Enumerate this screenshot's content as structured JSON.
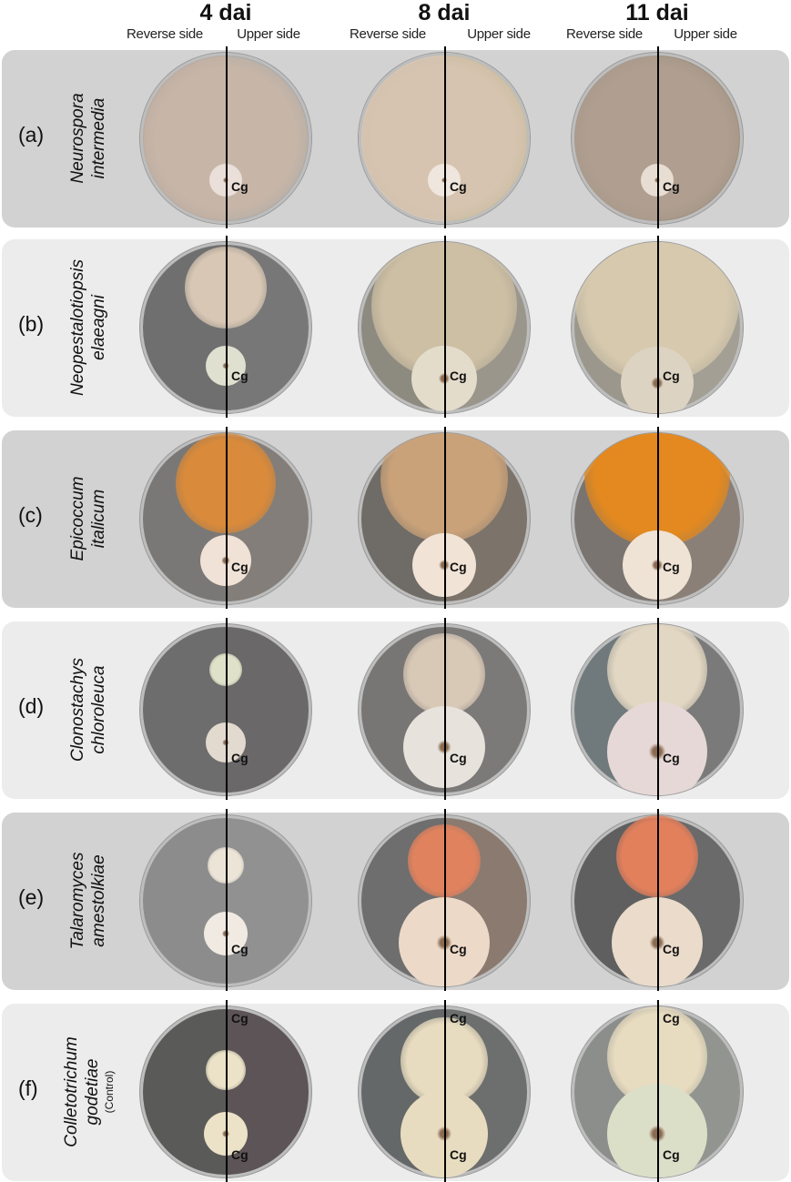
{
  "header": {
    "days": [
      "4 dai",
      "8 dai",
      "11 dai"
    ],
    "reverse_label": "Reverse side",
    "upper_label": "Upper side"
  },
  "rows": [
    {
      "letter": "(a)",
      "species": [
        "Neurospora",
        "intermedia"
      ],
      "note": "",
      "dishes": [
        {
          "cg": [
            "Cg"
          ],
          "bg": "#b9aaa0",
          "upper_bg": "#a9a9a9",
          "colony": "#c7b6a8",
          "cg_colony": "#eadfd9"
        },
        {
          "cg": [
            "Cg"
          ],
          "bg": "#d9c8b6",
          "upper_bg": "#cdbf9a",
          "colony": "#d6c4b0",
          "cg_colony": "#efe6dd"
        },
        {
          "cg": [
            "Cg"
          ],
          "bg": "#a8998c",
          "upper_bg": "#9c8f80",
          "colony": "#b09f90",
          "cg_colony": "#e8ddd2"
        }
      ]
    },
    {
      "letter": "(b)",
      "species": [
        "Neopestalotiopsis",
        "elaeagni"
      ],
      "note": "",
      "dishes": [
        {
          "cg": [
            "Cg"
          ],
          "bg": "#6f6f6f",
          "upper_bg": "#777777",
          "colony": "#d8c7b4",
          "cg_colony": "#dfe0cf"
        },
        {
          "cg": [
            "Cg"
          ],
          "bg": "#8d8a80",
          "upper_bg": "#9a968c",
          "colony": "#cdbfa4",
          "cg_colony": "#e4dccb"
        },
        {
          "cg": [
            "Cg"
          ],
          "bg": "#9b978c",
          "upper_bg": "#a49f94",
          "colony": "#d6c9ae",
          "cg_colony": "#ddd3c2"
        }
      ]
    },
    {
      "letter": "(c)",
      "species": [
        "Epicoccum",
        "italicum"
      ],
      "note": "",
      "dishes": [
        {
          "cg": [
            "Cg"
          ],
          "bg": "#7a7876",
          "upper_bg": "#837e79",
          "colony": "#d98a3a",
          "cg_colony": "#f0e2d6"
        },
        {
          "cg": [
            "Cg"
          ],
          "bg": "#6f6b66",
          "upper_bg": "#7c736a",
          "colony": "#c9a27a",
          "cg_colony": "#f1e3d6"
        },
        {
          "cg": [
            "Cg"
          ],
          "bg": "#7a7470",
          "upper_bg": "#8a8078",
          "colony": "#e3891f",
          "cg_colony": "#efe3d5"
        }
      ]
    },
    {
      "letter": "(d)",
      "species": [
        "Clonostachys",
        "chloroleuca"
      ],
      "note": "",
      "dishes": [
        {
          "cg": [
            "Cg"
          ],
          "bg": "#6d6d6d",
          "upper_bg": "#6a6868",
          "colony": "#dfe1c8",
          "cg_colony": "#e2d9cf"
        },
        {
          "cg": [
            "Cg"
          ],
          "bg": "#777674",
          "upper_bg": "#7b7a78",
          "colony": "#d8c8b6",
          "cg_colony": "#e8e2dc"
        },
        {
          "cg": [
            "Cg"
          ],
          "bg": "#707a7c",
          "upper_bg": "#7a7a7a",
          "colony": "#e2d7c2",
          "cg_colony": "#e6d8d6"
        }
      ]
    },
    {
      "letter": "(e)",
      "species": [
        "Talaromyces",
        "amestolkiae"
      ],
      "note": "",
      "dishes": [
        {
          "cg": [
            "Cg"
          ],
          "bg": "#8c8c8c",
          "upper_bg": "#919191",
          "colony": "#ece4d6",
          "cg_colony": "#f0eae2"
        },
        {
          "cg": [
            "Cg"
          ],
          "bg": "#6e6e6e",
          "upper_bg": "#8a7a70",
          "colony": "#e0825e",
          "cg_colony": "#ecd9c8"
        },
        {
          "cg": [
            "Cg"
          ],
          "bg": "#5f5f5f",
          "upper_bg": "#6a6a6a",
          "colony": "#e3805c",
          "cg_colony": "#eadbcb"
        }
      ]
    },
    {
      "letter": "(f)",
      "species": [
        "Colletotrichum",
        "godetiae"
      ],
      "note": "(Control)",
      "dishes": [
        {
          "cg": [
            "Cg",
            "Cg"
          ],
          "bg": "#5a5a58",
          "upper_bg": "#5c5456",
          "colony": "#ebe2c7",
          "cg_colony": "#ebe2c7"
        },
        {
          "cg": [
            "Cg",
            "Cg"
          ],
          "bg": "#646868",
          "upper_bg": "#6d6f6e",
          "colony": "#e8dcc0",
          "cg_colony": "#e8dcc0"
        },
        {
          "cg": [
            "Cg",
            "Cg"
          ],
          "bg": "#8c8e8c",
          "upper_bg": "#92958f",
          "colony": "#e8dcc0",
          "cg_colony": "#dcdfc8"
        }
      ]
    }
  ]
}
